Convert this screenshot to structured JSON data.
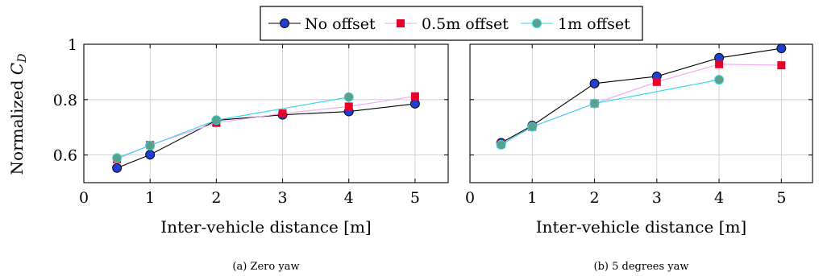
{
  "legend": {
    "items": [
      {
        "label": "No offset",
        "color": "#000000",
        "marker": "circle",
        "marker_fill": "#1f3fd1"
      },
      {
        "label": "0.5m offset",
        "color": "#f3a6ef",
        "marker": "square",
        "marker_fill": "#e8002a"
      },
      {
        "label": "1m offset",
        "color": "#2dd4e8",
        "marker": "circle",
        "marker_fill": "#5aa08a"
      }
    ]
  },
  "y_axis_label": "Normalized C_D",
  "chart_data": [
    {
      "type": "line",
      "caption": "(a) Zero yaw",
      "xlabel": "Inter-vehicle distance [m]",
      "ylabel": "Normalized C_D",
      "xlim": [
        0,
        5.5
      ],
      "ylim": [
        0.5,
        1.0
      ],
      "xticks": [
        0,
        1,
        2,
        3,
        4,
        5
      ],
      "yticks": [
        0.6,
        0.8,
        1
      ],
      "ytick_labels": [
        "0.6",
        "0.8",
        "1"
      ],
      "grid": true,
      "series": [
        {
          "name": "No offset",
          "x": [
            0.5,
            1,
            2,
            3,
            4,
            5
          ],
          "y": [
            0.553,
            0.601,
            0.725,
            0.745,
            0.757,
            0.785
          ]
        },
        {
          "name": "0.5m offset",
          "x": [
            0.5,
            1,
            2,
            3,
            4,
            5
          ],
          "y": [
            0.585,
            0.636,
            0.716,
            0.75,
            0.775,
            0.812
          ]
        },
        {
          "name": "1m offset",
          "x": [
            0.5,
            1,
            2,
            4
          ],
          "y": [
            0.589,
            0.634,
            0.726,
            0.809
          ]
        }
      ]
    },
    {
      "type": "line",
      "caption": "(b) 5 degrees yaw",
      "xlabel": "Inter-vehicle distance [m]",
      "ylabel": "",
      "xlim": [
        0,
        5.5
      ],
      "ylim": [
        0.5,
        1.0
      ],
      "xticks": [
        0,
        1,
        2,
        3,
        4,
        5
      ],
      "yticks": [
        0.6,
        0.8,
        1
      ],
      "ytick_labels": [],
      "grid": true,
      "series": [
        {
          "name": "No offset",
          "x": [
            0.5,
            1,
            2,
            3,
            4,
            5
          ],
          "y": [
            0.644,
            0.706,
            0.858,
            0.884,
            0.951,
            0.985
          ]
        },
        {
          "name": "0.5m offset",
          "x": [
            0.5,
            1,
            2,
            3,
            4,
            5
          ],
          "y": [
            0.639,
            0.702,
            0.786,
            0.864,
            0.928,
            0.924
          ]
        },
        {
          "name": "1m offset",
          "x": [
            0.5,
            1,
            2,
            4
          ],
          "y": [
            0.637,
            0.702,
            0.786,
            0.872
          ]
        }
      ]
    }
  ]
}
